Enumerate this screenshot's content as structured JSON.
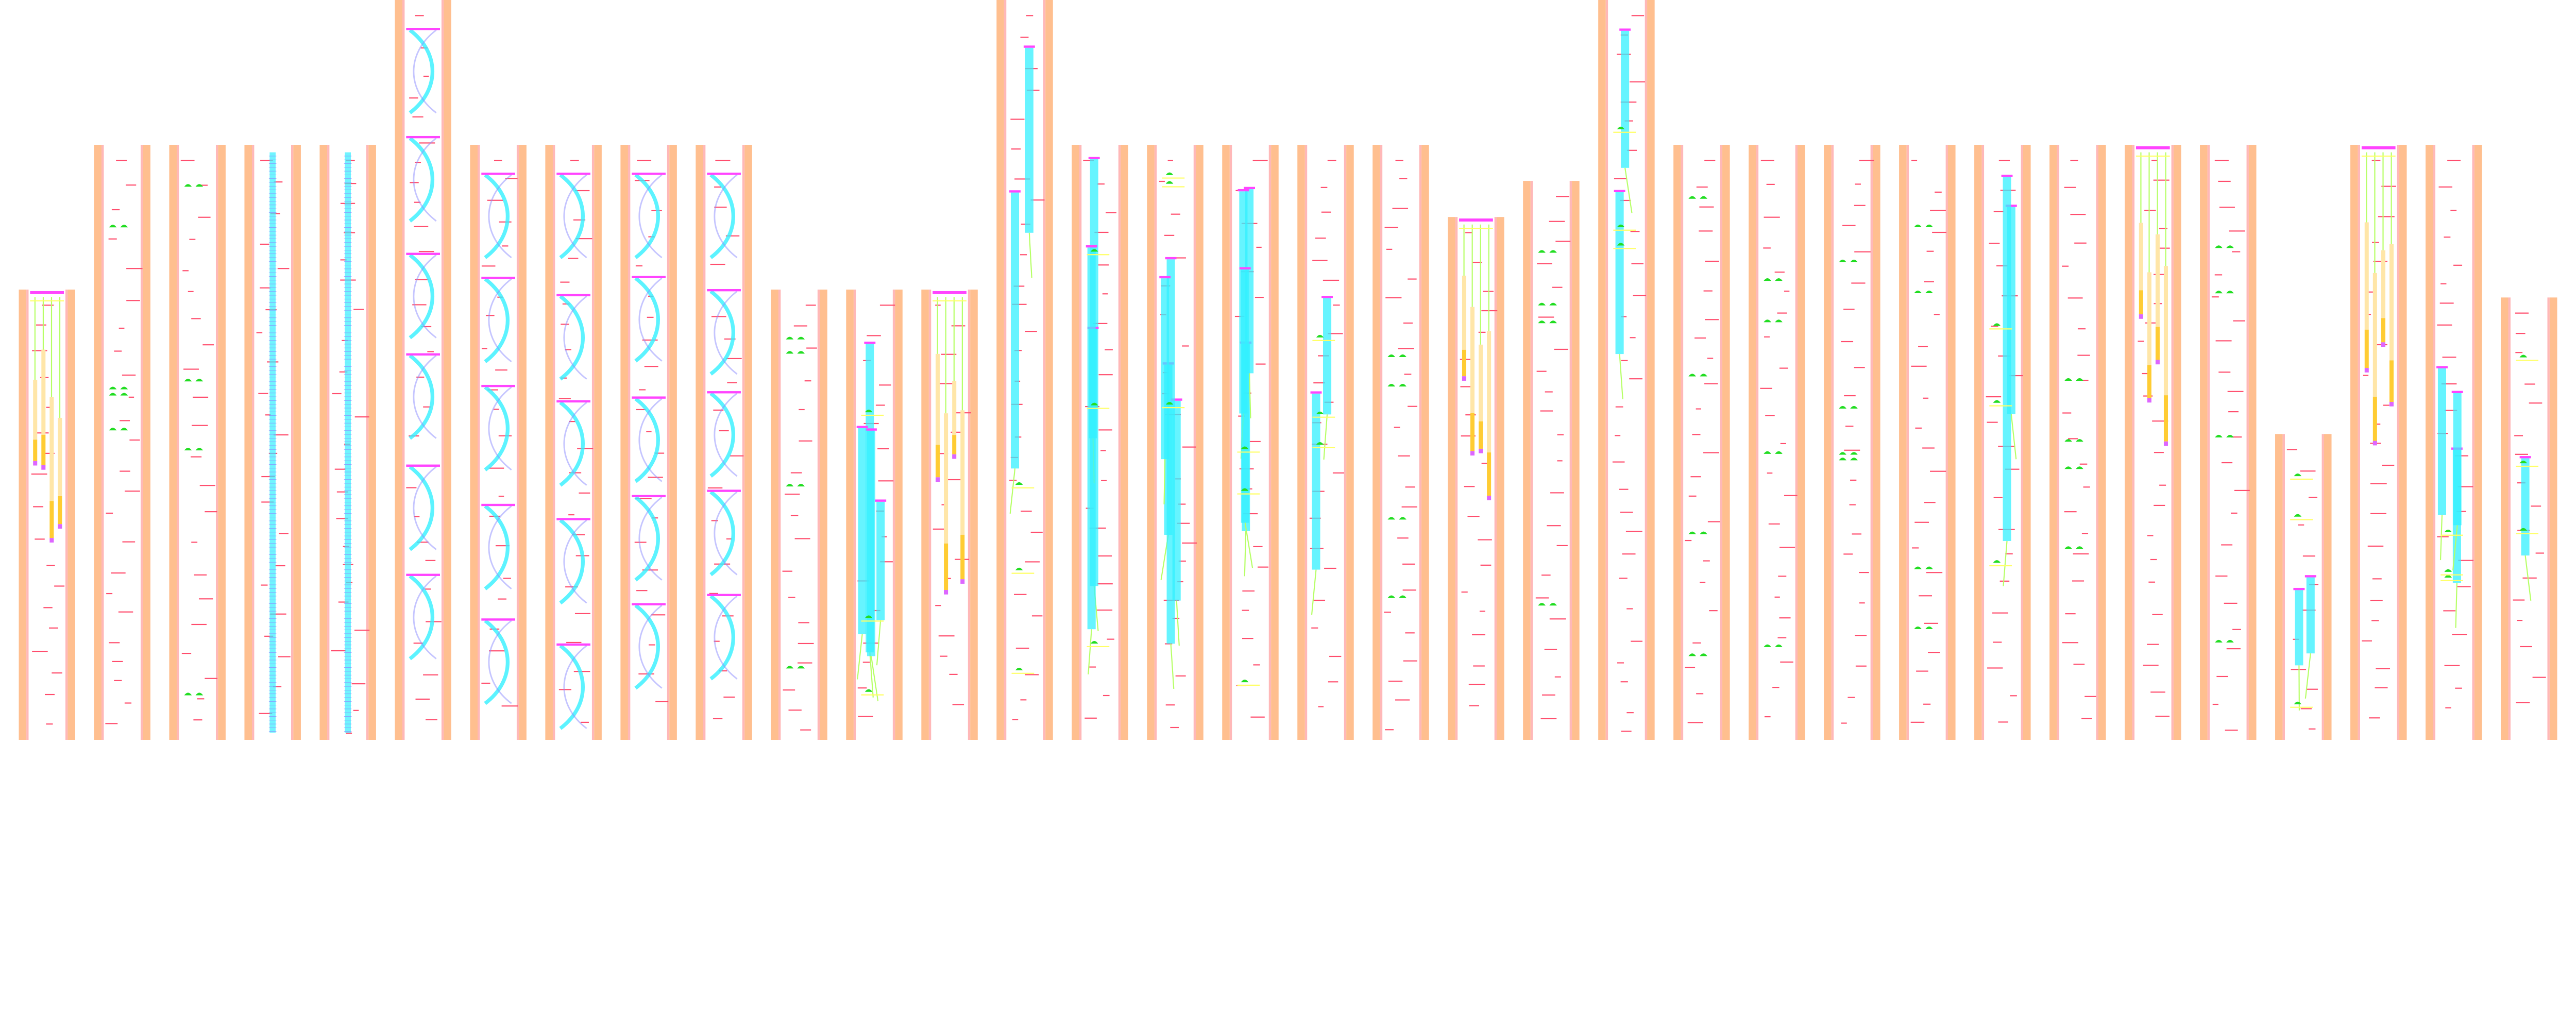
{
  "diagram": {
    "colors": {
      "frame": "#ffbf8f",
      "frame_inner": "#ffb8b8",
      "dash": "#ff4d6d",
      "leaf": "#22dd22",
      "stem": "#b6ff66",
      "rung": "#ffff66",
      "band": "#33f0ff",
      "band_edge": "#8c8cff",
      "cap": "#ff44ff",
      "bar_warm": "#ffcc33",
      "bar_light": "#ffe6a8",
      "bar_tail": "#dd66ff"
    },
    "column_kinds": [
      "bars",
      "dashes",
      "dashes",
      "ladder",
      "ladder",
      "arcs",
      "arcs",
      "arcs",
      "arcs",
      "arcs",
      "dashes",
      "bands",
      "bars",
      "bands",
      "bands",
      "bands",
      "bands",
      "bands",
      "dashes",
      "bars",
      "dashes",
      "bands",
      "dashes",
      "dashes",
      "dashes",
      "dashes",
      "bands",
      "dashes",
      "bars",
      "dashes",
      "bands",
      "bars",
      "bands",
      "band"
    ]
  }
}
